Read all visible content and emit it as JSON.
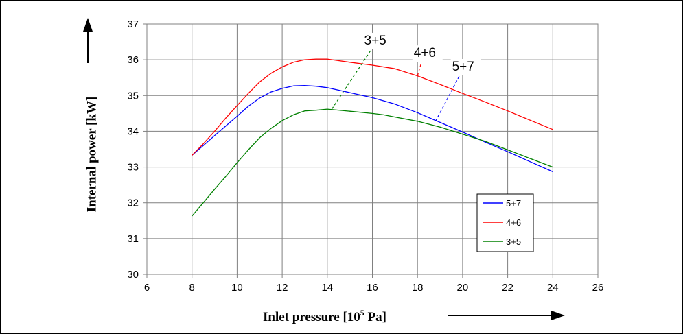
{
  "chart_data": {
    "type": "line",
    "xlabel": {
      "prefix": "Inlet pressure [10",
      "sup": "5",
      "suffix": " Pa]"
    },
    "ylabel": "Internal power [kW]",
    "xlim": [
      6,
      26
    ],
    "ylim": [
      30,
      37
    ],
    "xticks": [
      "6",
      "8",
      "10",
      "12",
      "14",
      "16",
      "18",
      "20",
      "22",
      "24",
      "26"
    ],
    "yticks": [
      "30",
      "31",
      "32",
      "33",
      "34",
      "35",
      "36",
      "37"
    ],
    "grid": true,
    "legend_position": "right",
    "series": [
      {
        "name": "5+7",
        "color": "#0000ff",
        "points": [
          [
            8,
            33.33
          ],
          [
            8.5,
            33.6
          ],
          [
            9,
            33.88
          ],
          [
            9.5,
            34.15
          ],
          [
            10,
            34.42
          ],
          [
            10.5,
            34.7
          ],
          [
            11,
            34.93
          ],
          [
            11.5,
            35.1
          ],
          [
            12,
            35.2
          ],
          [
            12.5,
            35.27
          ],
          [
            13,
            35.28
          ],
          [
            13.5,
            35.26
          ],
          [
            14,
            35.22
          ],
          [
            15,
            35.08
          ],
          [
            16,
            34.94
          ],
          [
            17,
            34.76
          ],
          [
            18,
            34.52
          ],
          [
            19,
            34.25
          ],
          [
            20,
            33.98
          ],
          [
            21,
            33.7
          ],
          [
            22,
            33.43
          ],
          [
            23,
            33.15
          ],
          [
            24,
            32.87
          ]
        ],
        "callout": {
          "label": "5+7",
          "from": [
            18.8,
            34.28
          ],
          "to": [
            19.9,
            35.6
          ]
        }
      },
      {
        "name": "4+6",
        "color": "#ff0000",
        "points": [
          [
            8,
            33.33
          ],
          [
            8.5,
            33.65
          ],
          [
            9,
            34.0
          ],
          [
            9.5,
            34.37
          ],
          [
            10,
            34.72
          ],
          [
            10.5,
            35.06
          ],
          [
            11,
            35.38
          ],
          [
            11.5,
            35.62
          ],
          [
            12,
            35.8
          ],
          [
            12.5,
            35.93
          ],
          [
            13,
            36.0
          ],
          [
            13.5,
            36.02
          ],
          [
            14,
            36.02
          ],
          [
            15,
            35.93
          ],
          [
            16,
            35.85
          ],
          [
            17,
            35.75
          ],
          [
            18,
            35.55
          ],
          [
            19,
            35.31
          ],
          [
            20,
            35.06
          ],
          [
            21,
            34.82
          ],
          [
            22,
            34.57
          ],
          [
            23,
            34.31
          ],
          [
            24,
            34.05
          ]
        ],
        "callout": {
          "label": "4+6",
          "from": [
            18.0,
            35.55
          ],
          "to": [
            18.2,
            35.98
          ]
        }
      },
      {
        "name": "3+5",
        "color": "#008000",
        "points": [
          [
            8,
            31.63
          ],
          [
            8.5,
            32.0
          ],
          [
            9,
            32.38
          ],
          [
            9.5,
            32.74
          ],
          [
            10,
            33.12
          ],
          [
            10.5,
            33.48
          ],
          [
            11,
            33.82
          ],
          [
            11.5,
            34.08
          ],
          [
            12,
            34.3
          ],
          [
            12.5,
            34.46
          ],
          [
            13,
            34.57
          ],
          [
            13.5,
            34.59
          ],
          [
            14,
            34.62
          ],
          [
            15,
            34.56
          ],
          [
            16,
            34.5
          ],
          [
            16.5,
            34.46
          ],
          [
            17,
            34.4
          ],
          [
            18,
            34.28
          ],
          [
            19,
            34.12
          ],
          [
            20,
            33.92
          ],
          [
            21,
            33.72
          ],
          [
            22,
            33.48
          ],
          [
            23,
            33.24
          ],
          [
            24,
            33.0
          ]
        ],
        "callout": {
          "label": "3+5",
          "from": [
            14.2,
            34.62
          ],
          "to": [
            16.0,
            36.33
          ]
        }
      }
    ]
  }
}
